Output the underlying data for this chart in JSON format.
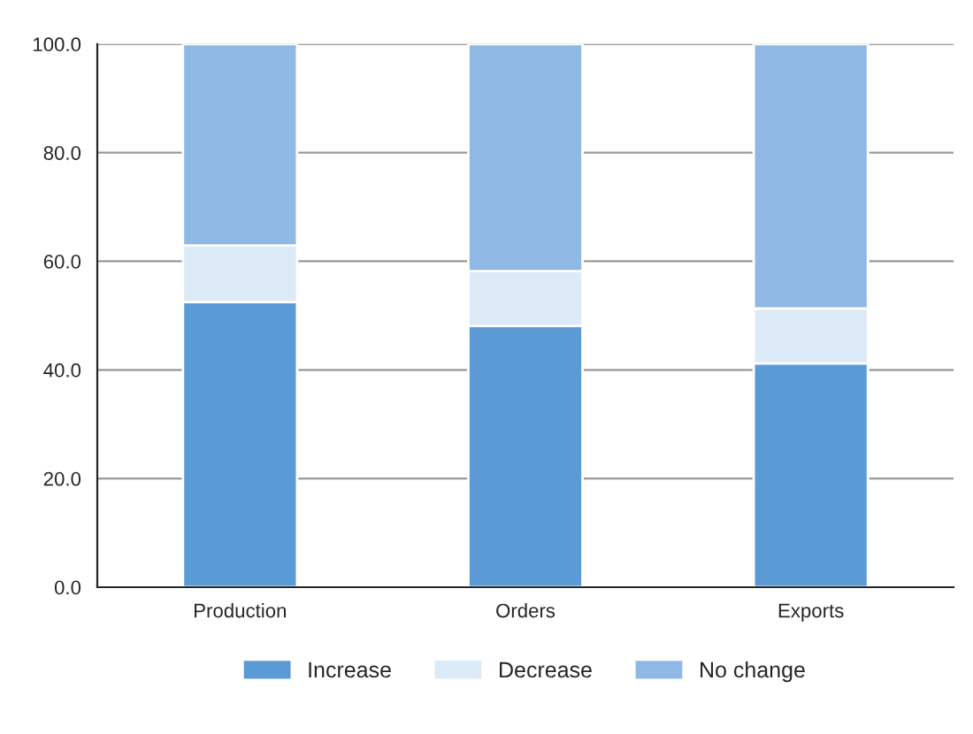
{
  "chart_data": {
    "type": "bar",
    "stacked": true,
    "categories": [
      "Production",
      "Orders",
      "Exports"
    ],
    "series": [
      {
        "name": "Increase",
        "color": "#5b9bd5",
        "values": [
          52.5,
          48.1,
          41.2
        ]
      },
      {
        "name": "Decrease",
        "color": "#dce9f6",
        "values": [
          10.4,
          10.1,
          10.1
        ]
      },
      {
        "name": "No change",
        "color": "#8fb8e4",
        "values": [
          37.1,
          41.8,
          48.7
        ]
      }
    ],
    "ylim": [
      0,
      100
    ],
    "yticks": [
      {
        "value": 0,
        "label": "0.0"
      },
      {
        "value": 20,
        "label": "20.0"
      },
      {
        "value": 40,
        "label": "40.0"
      },
      {
        "value": 60,
        "label": "60.0"
      },
      {
        "value": 80,
        "label": "80.0"
      },
      {
        "value": 100,
        "label": "100.0"
      }
    ],
    "grid": "y",
    "legend": "bottom"
  }
}
